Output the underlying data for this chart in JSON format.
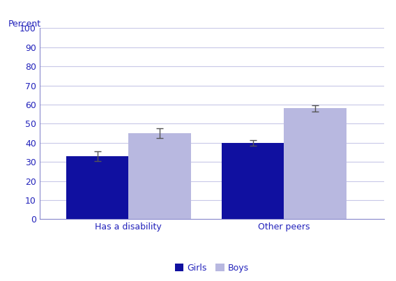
{
  "categories": [
    "Has a disability",
    "Other peers"
  ],
  "girls_values": [
    33,
    40
  ],
  "boys_values": [
    45,
    58
  ],
  "girls_errors": [
    2.5,
    1.5
  ],
  "boys_errors": [
    2.5,
    1.5
  ],
  "girls_color": "#1010a0",
  "boys_color": "#b8b8e0",
  "ylabel": "Percent",
  "ylim": [
    0,
    100
  ],
  "yticks": [
    0,
    10,
    20,
    30,
    40,
    50,
    60,
    70,
    80,
    90,
    100
  ],
  "legend_labels": [
    "Girls",
    "Boys"
  ],
  "bar_width": 0.28,
  "group_centers": [
    0.3,
    1.0
  ],
  "grid_color": "#c8c8e8",
  "axis_color": "#8888cc",
  "text_color": "#2222bb",
  "error_color": "#555555",
  "background_color": "#ffffff",
  "tick_label_fontsize": 9,
  "ylabel_fontsize": 9,
  "legend_fontsize": 9
}
